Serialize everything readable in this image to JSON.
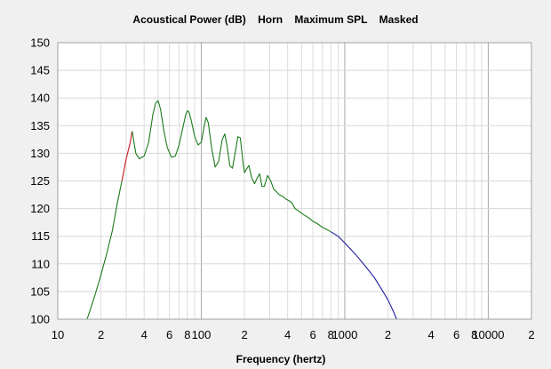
{
  "chart_data": {
    "type": "line",
    "title": "Acoustical Power (dB)    Horn    Maximum SPL    Masked",
    "xlabel": "Frequency (hertz)",
    "ylabel": "",
    "x_scale": "log",
    "xlim": [
      10,
      20000
    ],
    "ylim": [
      100,
      150
    ],
    "grid": true,
    "y_ticks": [
      100,
      105,
      110,
      115,
      120,
      125,
      130,
      135,
      140,
      145,
      150
    ],
    "x_tick_labels": [
      {
        "x": 10,
        "label": "10"
      },
      {
        "x": 20,
        "label": "2"
      },
      {
        "x": 40,
        "label": "4"
      },
      {
        "x": 60,
        "label": "6"
      },
      {
        "x": 80,
        "label": "8"
      },
      {
        "x": 100,
        "label": "100"
      },
      {
        "x": 200,
        "label": "2"
      },
      {
        "x": 400,
        "label": "4"
      },
      {
        "x": 600,
        "label": "6"
      },
      {
        "x": 800,
        "label": "8"
      },
      {
        "x": 1000,
        "label": "1000"
      },
      {
        "x": 2000,
        "label": "2"
      },
      {
        "x": 4000,
        "label": "4"
      },
      {
        "x": 6000,
        "label": "6"
      },
      {
        "x": 8000,
        "label": "8"
      },
      {
        "x": 10000,
        "label": "10000"
      },
      {
        "x": 20000,
        "label": "2"
      }
    ],
    "series": [
      {
        "color": "#1a7a1a",
        "x": [
          16,
          18,
          20,
          22,
          24,
          26,
          28
        ],
        "y": [
          100,
          104,
          108,
          112,
          116,
          121,
          125
        ]
      },
      {
        "color": "#c8141e",
        "x": [
          28,
          30,
          32,
          33
        ],
        "y": [
          125,
          129,
          132,
          134
        ]
      },
      {
        "color": "#1a7a1a",
        "x": [
          33,
          35,
          37,
          40,
          43,
          46,
          48,
          50,
          52,
          55,
          58,
          62,
          66,
          70,
          75,
          78,
          80,
          82,
          85,
          90,
          95,
          100,
          105,
          108,
          112,
          118,
          125,
          132,
          140,
          146,
          152,
          158,
          165,
          172,
          180,
          187,
          195,
          200,
          205,
          215,
          225,
          235,
          245,
          255,
          265,
          275,
          290,
          305,
          320,
          335,
          350,
          370,
          390,
          410,
          430,
          450,
          480,
          510,
          540,
          570,
          600,
          650,
          700,
          750,
          800
        ],
        "y": [
          134,
          130,
          129,
          129.5,
          132,
          137,
          139,
          139.5,
          138,
          134,
          131,
          129.3,
          129.5,
          131.5,
          135,
          137,
          137.7,
          137.5,
          136,
          133,
          131.5,
          132,
          135,
          136.5,
          135.5,
          131,
          127.5,
          128.5,
          132.5,
          133.5,
          131,
          127.8,
          127.3,
          130,
          133,
          132.8,
          128.5,
          126.5,
          127,
          127.8,
          125.5,
          124.5,
          125.5,
          126.3,
          124,
          124,
          126,
          125,
          123.5,
          123,
          122.5,
          122.2,
          121.7,
          121.4,
          121,
          120,
          119.5,
          119,
          118.6,
          118.2,
          117.7,
          117.2,
          116.6,
          116.2,
          115.8
        ]
      },
      {
        "color": "#1e1ea0",
        "x": [
          800,
          900,
          1000,
          1200,
          1400,
          1600,
          1800,
          2000,
          2200,
          2300
        ],
        "y": [
          115.8,
          115,
          113.8,
          111.6,
          109.5,
          107.6,
          105.5,
          103.5,
          101.2,
          100
        ]
      }
    ]
  }
}
